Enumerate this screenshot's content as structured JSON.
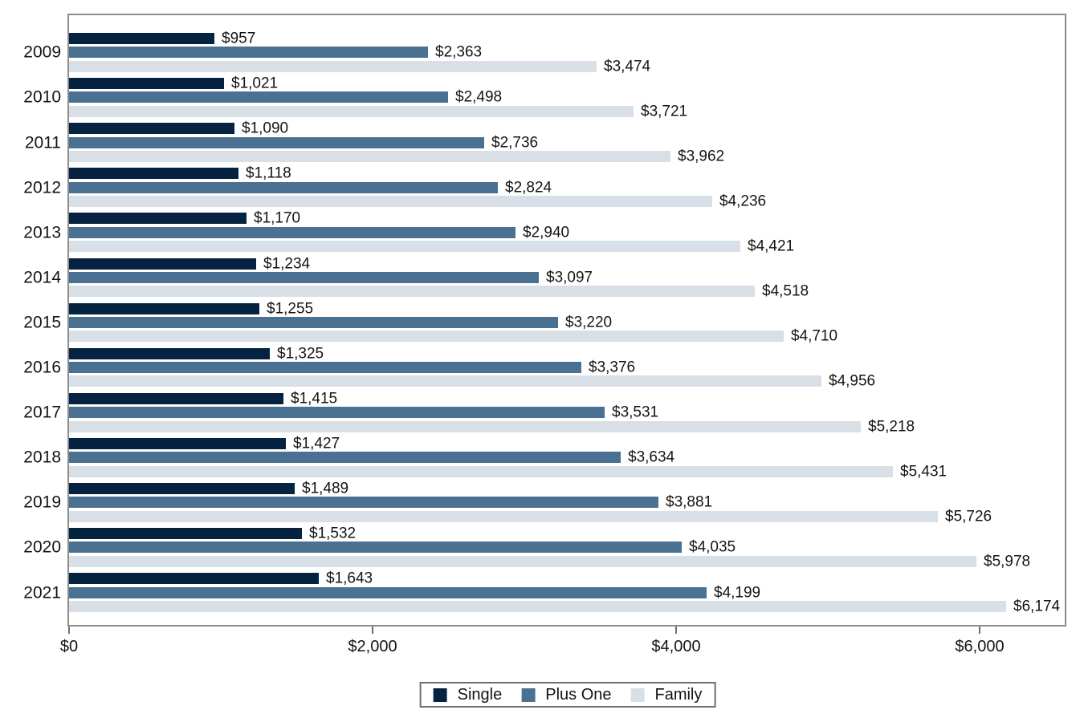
{
  "chart_data": {
    "type": "bar",
    "orientation": "horizontal",
    "title": "",
    "xlabel": "",
    "ylabel": "",
    "grid": false,
    "legend_position": "bottom-center",
    "categories": [
      "2009",
      "2010",
      "2011",
      "2012",
      "2013",
      "2014",
      "2015",
      "2016",
      "2017",
      "2018",
      "2019",
      "2020",
      "2021"
    ],
    "series": [
      {
        "name": "Single",
        "color": "#052340",
        "values": [
          957,
          1021,
          1090,
          1118,
          1170,
          1234,
          1255,
          1325,
          1415,
          1427,
          1489,
          1532,
          1643
        ],
        "labels": [
          "$957",
          "$1,021",
          "$1,090",
          "$1,118",
          "$1,170",
          "$1,234",
          "$1,255",
          "$1,325",
          "$1,415",
          "$1,427",
          "$1,489",
          "$1,532",
          "$1,643"
        ]
      },
      {
        "name": "Plus One",
        "color": "#4a7191",
        "values": [
          2363,
          2498,
          2736,
          2824,
          2940,
          3097,
          3220,
          3376,
          3531,
          3634,
          3881,
          4035,
          4199
        ],
        "labels": [
          "$2,363",
          "$2,498",
          "$2,736",
          "$2,824",
          "$2,940",
          "$3,097",
          "$3,220",
          "$3,376",
          "$3,531",
          "$3,634",
          "$3,881",
          "$4,035",
          "$4,199"
        ]
      },
      {
        "name": "Family",
        "color": "#d8dfe6",
        "values": [
          3474,
          3721,
          3962,
          4236,
          4421,
          4518,
          4710,
          4956,
          5218,
          5431,
          5726,
          5978,
          6174
        ],
        "labels": [
          "$3,474",
          "$3,721",
          "$3,962",
          "$4,236",
          "$4,421",
          "$4,518",
          "$4,710",
          "$4,956",
          "$5,218",
          "$5,431",
          "$5,726",
          "$5,978",
          "$6,174"
        ]
      }
    ],
    "xlim": [
      0,
      6560
    ],
    "x_ticks": [
      0,
      2000,
      4000,
      6000
    ],
    "x_tick_labels": [
      "$0",
      "$2,000",
      "$4,000",
      "$6,000"
    ]
  }
}
